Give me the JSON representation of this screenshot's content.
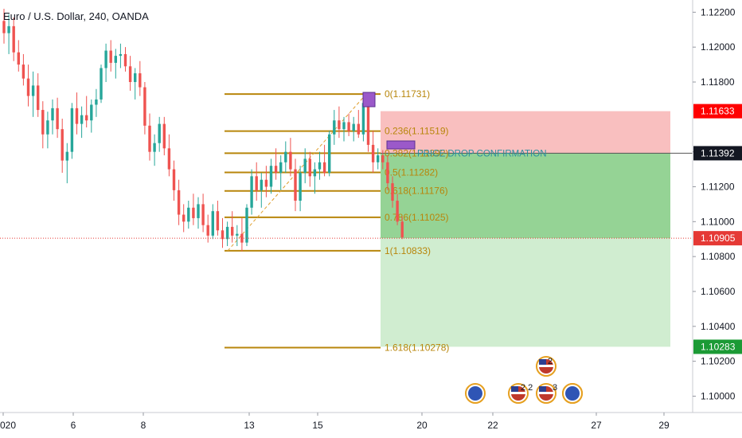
{
  "header": {
    "title": "Euro / U.S. Dollar, 240, OANDA"
  },
  "colors": {
    "up": "#26a69a",
    "down": "#ef5350",
    "fib": "#b8860b",
    "fib_text": "#b8860b",
    "stop_zone": "#f8b4b4",
    "target_zone_strong": "#8fd18f",
    "target_zone_light": "#cdeccd",
    "price_line": "#e53935",
    "entry_label": "#131722",
    "stop_label": "#ff0000",
    "target_label": "#1b9a35",
    "trend_line": "#e0a030"
  },
  "chart_data": {
    "type": "candlestick",
    "title": "Euro / U.S. Dollar, 240, OANDA",
    "y_axis": {
      "range": [
        1.0992,
        1.1227
      ],
      "ticks": [
        "1.12200",
        "1.12000",
        "1.11800",
        "1.11400",
        "1.11200",
        "1.11000",
        "1.10800",
        "1.10600",
        "1.10400",
        "1.10200",
        "1.10000"
      ]
    },
    "x_axis": {
      "ticks": [
        "2020",
        "6",
        "8",
        "13",
        "15",
        "20",
        "22",
        "27",
        "29"
      ]
    },
    "fib_levels": [
      {
        "label": "0(1.11731)",
        "price": 1.11731
      },
      {
        "label": "0.236(1.11519)",
        "price": 1.11519
      },
      {
        "label": "0.382(1.11392)",
        "price": 1.11392
      },
      {
        "label": "0.5(1.11282)",
        "price": 1.11282
      },
      {
        "label": "0.618(1.11176)",
        "price": 1.11176
      },
      {
        "label": "0.786(1.11025)",
        "price": 1.11025
      },
      {
        "label": "1(1.10833)",
        "price": 1.10833
      },
      {
        "label": "1.618(1.10278)",
        "price": 1.10278
      }
    ],
    "annotation": "PRICE DROP CONFIRMATION",
    "price_labels": [
      {
        "value": "1.11633",
        "price": 1.11633,
        "kind": "stop"
      },
      {
        "value": "1.11392",
        "price": 1.11392,
        "kind": "entry"
      },
      {
        "value": "1.10905",
        "price": 1.10905,
        "kind": "current"
      },
      {
        "value": "1.10283",
        "price": 1.10283,
        "kind": "target"
      }
    ],
    "position": {
      "entry": 1.11392,
      "stop": 1.11633,
      "target": 1.10283
    },
    "candles": [
      [
        1.1215,
        1.1222,
        1.1202,
        1.1208
      ],
      [
        1.1208,
        1.1219,
        1.1196,
        1.1212
      ],
      [
        1.1212,
        1.1217,
        1.1192,
        1.1197
      ],
      [
        1.1197,
        1.1204,
        1.1186,
        1.119
      ],
      [
        1.119,
        1.1196,
        1.1178,
        1.1182
      ],
      [
        1.1182,
        1.119,
        1.1166,
        1.1172
      ],
      [
        1.1172,
        1.1186,
        1.116,
        1.1178
      ],
      [
        1.1178,
        1.1185,
        1.116,
        1.1164
      ],
      [
        1.1164,
        1.1169,
        1.1142,
        1.115
      ],
      [
        1.115,
        1.1163,
        1.1142,
        1.1158
      ],
      [
        1.1158,
        1.117,
        1.115,
        1.1165
      ],
      [
        1.1165,
        1.1171,
        1.1148,
        1.1153
      ],
      [
        1.1153,
        1.1159,
        1.1128,
        1.1135
      ],
      [
        1.1135,
        1.1145,
        1.1122,
        1.114
      ],
      [
        1.114,
        1.1168,
        1.1136,
        1.1165
      ],
      [
        1.1165,
        1.1174,
        1.115,
        1.1156
      ],
      [
        1.1156,
        1.1166,
        1.1148,
        1.1161
      ],
      [
        1.1161,
        1.1172,
        1.1154,
        1.1158
      ],
      [
        1.1158,
        1.117,
        1.1151,
        1.1167
      ],
      [
        1.1167,
        1.1176,
        1.116,
        1.117
      ],
      [
        1.117,
        1.119,
        1.1168,
        1.1188
      ],
      [
        1.1188,
        1.1202,
        1.118,
        1.1198
      ],
      [
        1.1198,
        1.1204,
        1.1186,
        1.1191
      ],
      [
        1.1191,
        1.1199,
        1.1182,
        1.1195
      ],
      [
        1.1195,
        1.1202,
        1.1188,
        1.1196
      ],
      [
        1.1196,
        1.12,
        1.1186,
        1.1189
      ],
      [
        1.1189,
        1.1195,
        1.1175,
        1.118
      ],
      [
        1.118,
        1.1188,
        1.117,
        1.1185
      ],
      [
        1.1185,
        1.1192,
        1.1172,
        1.1177
      ],
      [
        1.1177,
        1.118,
        1.115,
        1.1155
      ],
      [
        1.1155,
        1.1162,
        1.1135,
        1.114
      ],
      [
        1.114,
        1.115,
        1.1132,
        1.1145
      ],
      [
        1.1145,
        1.116,
        1.114,
        1.1156
      ],
      [
        1.1156,
        1.116,
        1.1138,
        1.1142
      ],
      [
        1.1142,
        1.115,
        1.1126,
        1.113
      ],
      [
        1.113,
        1.1135,
        1.1112,
        1.1118
      ],
      [
        1.1118,
        1.1124,
        1.1098,
        1.1104
      ],
      [
        1.1104,
        1.111,
        1.1094,
        1.11
      ],
      [
        1.11,
        1.1112,
        1.1096,
        1.1108
      ],
      [
        1.1108,
        1.1116,
        1.1098,
        1.1102
      ],
      [
        1.1102,
        1.1114,
        1.1096,
        1.111
      ],
      [
        1.111,
        1.1116,
        1.1094,
        1.1098
      ],
      [
        1.1098,
        1.1104,
        1.1088,
        1.1092
      ],
      [
        1.1092,
        1.111,
        1.109,
        1.1106
      ],
      [
        1.1106,
        1.1112,
        1.1092,
        1.1095
      ],
      [
        1.1095,
        1.1102,
        1.1085,
        1.109
      ],
      [
        1.109,
        1.11,
        1.1086,
        1.1097
      ],
      [
        1.1097,
        1.1106,
        1.1088,
        1.1092
      ],
      [
        1.1092,
        1.1098,
        1.1086,
        1.1093
      ],
      [
        1.1093,
        1.1102,
        1.1083,
        1.1088
      ],
      [
        1.1088,
        1.111,
        1.1086,
        1.1108
      ],
      [
        1.1108,
        1.113,
        1.1104,
        1.1126
      ],
      [
        1.1126,
        1.1134,
        1.1112,
        1.1118
      ],
      [
        1.1118,
        1.1128,
        1.1108,
        1.1124
      ],
      [
        1.1124,
        1.1132,
        1.1114,
        1.112
      ],
      [
        1.112,
        1.1136,
        1.1116,
        1.1132
      ],
      [
        1.1132,
        1.1142,
        1.1124,
        1.1128
      ],
      [
        1.1128,
        1.1138,
        1.1118,
        1.1134
      ],
      [
        1.1134,
        1.1146,
        1.1128,
        1.114
      ],
      [
        1.114,
        1.1148,
        1.1126,
        1.113
      ],
      [
        1.113,
        1.1136,
        1.1106,
        1.1112
      ],
      [
        1.1112,
        1.1132,
        1.1106,
        1.1128
      ],
      [
        1.1128,
        1.1142,
        1.1122,
        1.1136
      ],
      [
        1.1136,
        1.114,
        1.112,
        1.1126
      ],
      [
        1.1126,
        1.1134,
        1.1116,
        1.113
      ],
      [
        1.113,
        1.114,
        1.1124,
        1.1134
      ],
      [
        1.1134,
        1.1144,
        1.1126,
        1.1128
      ],
      [
        1.1128,
        1.1152,
        1.1126,
        1.115
      ],
      [
        1.115,
        1.1164,
        1.1144,
        1.1158
      ],
      [
        1.1158,
        1.1166,
        1.1148,
        1.1153
      ],
      [
        1.1153,
        1.116,
        1.1146,
        1.1157
      ],
      [
        1.1157,
        1.1162,
        1.1149,
        1.1152
      ],
      [
        1.1152,
        1.116,
        1.1146,
        1.1156
      ],
      [
        1.1156,
        1.1164,
        1.1148,
        1.115
      ],
      [
        1.115,
        1.1173,
        1.1146,
        1.1168
      ],
      [
        1.1168,
        1.1171,
        1.114,
        1.1144
      ],
      [
        1.1144,
        1.1152,
        1.1128,
        1.1134
      ],
      [
        1.1134,
        1.1142,
        1.113,
        1.1138
      ],
      [
        1.1138,
        1.1141,
        1.113,
        1.1134
      ],
      [
        1.1134,
        1.1138,
        1.1118,
        1.1122
      ],
      [
        1.1122,
        1.1126,
        1.1108,
        1.1112
      ],
      [
        1.1112,
        1.1116,
        1.1098,
        1.11
      ],
      [
        1.11,
        1.1103,
        1.109,
        1.1091
      ]
    ]
  },
  "flags": [
    "eu",
    "us",
    "eu",
    "us",
    "us",
    "eu"
  ],
  "flag_counts": [
    "2",
    "2 2",
    "3"
  ]
}
